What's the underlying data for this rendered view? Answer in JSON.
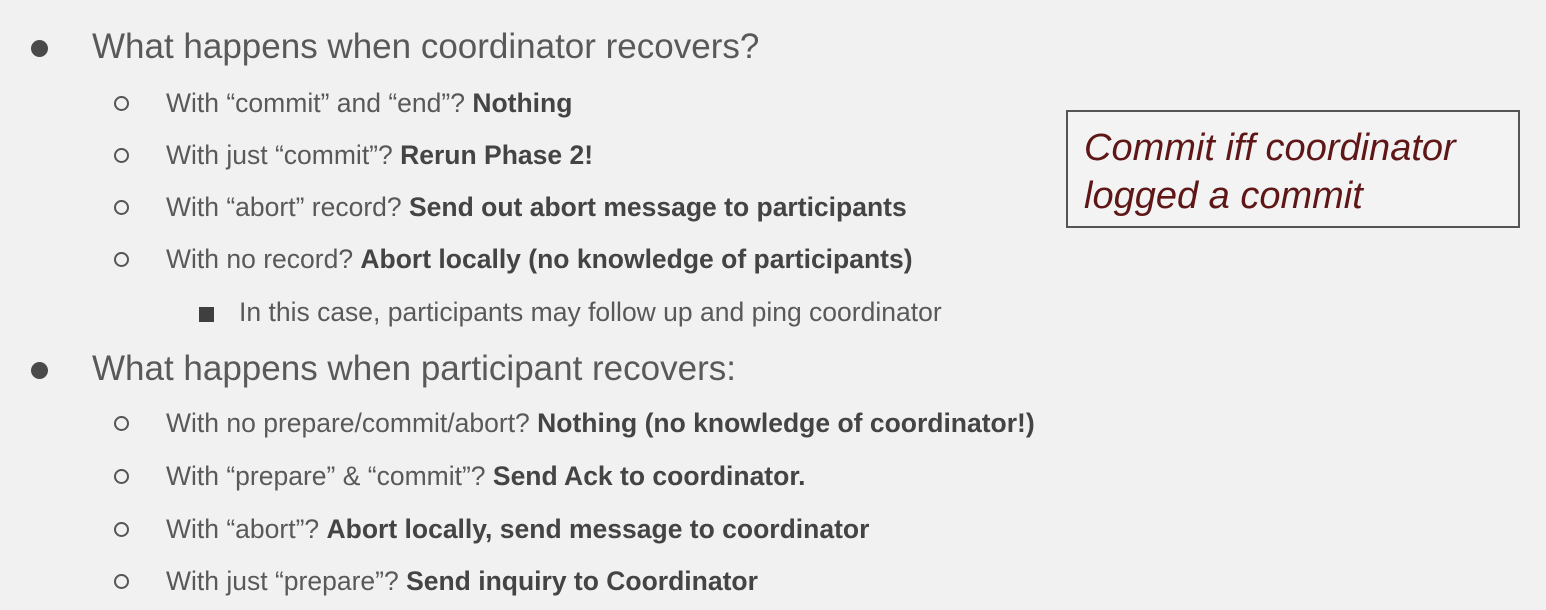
{
  "sections": [
    {
      "heading": "What happens when coordinator recovers?",
      "items": [
        {
          "question": "With “commit” and “end”?",
          "answer": "Nothing"
        },
        {
          "question": "With just “commit”?",
          "answer": "Rerun Phase 2!"
        },
        {
          "question": "With “abort” record?",
          "answer": "Send out abort message to participants"
        },
        {
          "question": "With no record?",
          "answer": "Abort locally (no knowledge of participants)"
        }
      ],
      "subnote": "In this case, participants may follow up and ping coordinator"
    },
    {
      "heading": "What happens when participant recovers:",
      "items": [
        {
          "question": "With no prepare/commit/abort?",
          "answer": "Nothing (no knowledge of coordinator!)"
        },
        {
          "question": "With “prepare” & “commit”?",
          "answer": "Send Ack to coordinator."
        },
        {
          "question": "With “abort”?",
          "answer": "Abort locally, send message to coordinator"
        },
        {
          "question": "With just “prepare”?",
          "answer": " Send inquiry to Coordinator"
        }
      ]
    }
  ],
  "callout": {
    "line1": "Commit iff coordinator",
    "line2": "logged a commit",
    "text_color": "#5e1616"
  }
}
